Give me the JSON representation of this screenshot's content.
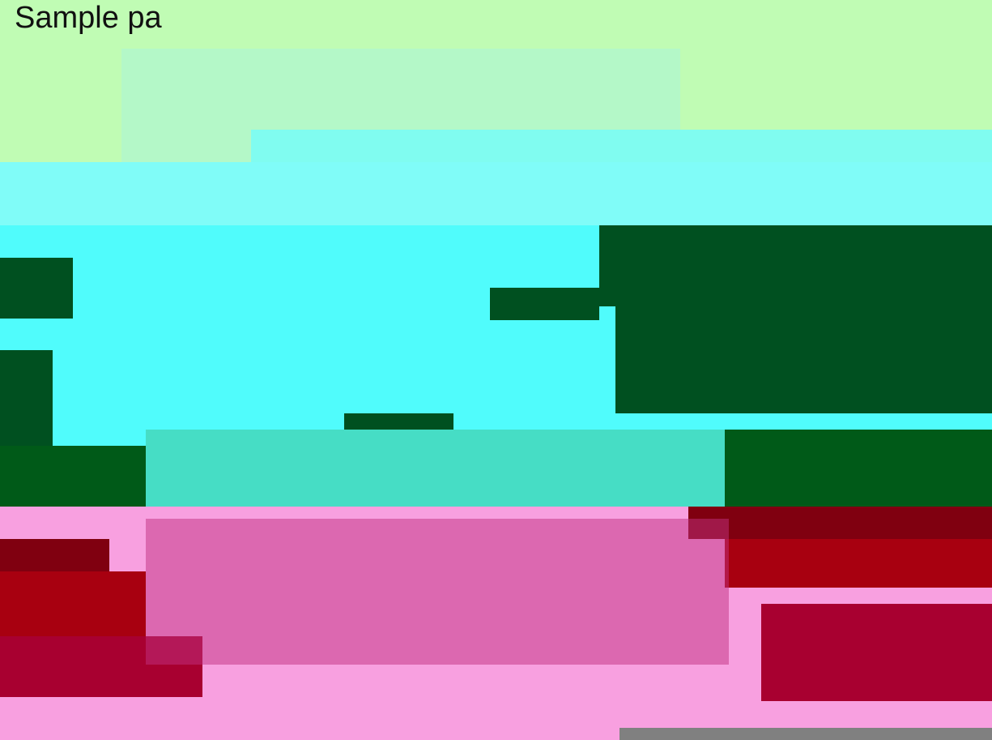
{
  "header": {
    "title": "Sample pa"
  }
}
